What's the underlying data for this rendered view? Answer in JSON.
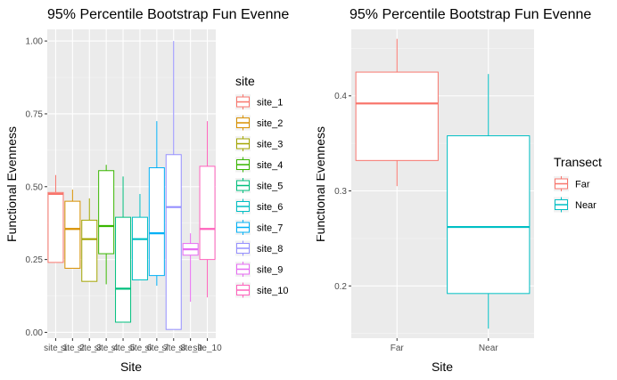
{
  "chart_data": [
    {
      "type": "box",
      "title": "95% Percentile Bootstrap Fun Evenne",
      "xlabel": "Site",
      "ylabel": "Functional Evenness",
      "ylim": [
        -0.02,
        1.04
      ],
      "yticks": [
        0.0,
        0.25,
        0.5,
        0.75,
        1.0
      ],
      "ytick_labels": [
        "0.00",
        "0.25",
        "0.50",
        "0.75",
        "1.00"
      ],
      "grid": true,
      "legend_title": "site",
      "legend_position": "right",
      "categories": [
        "site_1",
        "site_2",
        "site_3",
        "site_4",
        "site_5",
        "site_6",
        "site_7",
        "site_8",
        "site_9",
        "site_10"
      ],
      "xtick_labels": [
        "site_1",
        "site_2",
        "site_3",
        "site_4",
        "site_5",
        "site_6",
        "site_7",
        "site_8",
        "site_9",
        "site_10"
      ],
      "boxes": [
        {
          "name": "site_1",
          "color": "#F8766D",
          "min": 0.24,
          "q1": 0.24,
          "median": 0.475,
          "q3": 0.48,
          "max": 0.54
        },
        {
          "name": "site_2",
          "color": "#D89000",
          "min": 0.22,
          "q1": 0.22,
          "median": 0.355,
          "q3": 0.45,
          "max": 0.49
        },
        {
          "name": "site_3",
          "color": "#A3A500",
          "min": 0.175,
          "q1": 0.175,
          "median": 0.32,
          "q3": 0.385,
          "max": 0.46
        },
        {
          "name": "site_4",
          "color": "#39B600",
          "min": 0.165,
          "q1": 0.27,
          "median": 0.365,
          "q3": 0.555,
          "max": 0.575
        },
        {
          "name": "site_5",
          "color": "#00BF7D",
          "min": 0.035,
          "q1": 0.035,
          "median": 0.15,
          "q3": 0.395,
          "max": 0.535
        },
        {
          "name": "site_6",
          "color": "#00BFC4",
          "min": 0.18,
          "q1": 0.18,
          "median": 0.32,
          "q3": 0.395,
          "max": 0.475
        },
        {
          "name": "site_7",
          "color": "#00B0F6",
          "min": 0.16,
          "q1": 0.195,
          "median": 0.34,
          "q3": 0.565,
          "max": 0.725
        },
        {
          "name": "site_8",
          "color": "#9590FF",
          "min": 0.01,
          "q1": 0.01,
          "median": 0.43,
          "q3": 0.61,
          "max": 1.0
        },
        {
          "name": "site_9",
          "color": "#E76BF3",
          "min": 0.105,
          "q1": 0.265,
          "median": 0.285,
          "q3": 0.305,
          "max": 0.34
        },
        {
          "name": "site_10",
          "color": "#FF62BC",
          "min": 0.12,
          "q1": 0.25,
          "median": 0.355,
          "q3": 0.57,
          "max": 0.725
        }
      ]
    },
    {
      "type": "box",
      "title": "95% Percentile Bootstrap Fun Evenne",
      "xlabel": "Site",
      "ylabel": "Functional Evenness",
      "ylim": [
        0.145,
        0.47
      ],
      "yticks": [
        0.2,
        0.3,
        0.4
      ],
      "ytick_labels": [
        "0.2",
        "0.3",
        "0.4"
      ],
      "grid": true,
      "legend_title": "Transect",
      "legend_position": "right",
      "categories": [
        "Far",
        "Near"
      ],
      "xtick_labels": [
        "Far",
        "Near"
      ],
      "boxes": [
        {
          "name": "Far",
          "color": "#F8766D",
          "min": 0.305,
          "q1": 0.332,
          "median": 0.392,
          "q3": 0.425,
          "max": 0.46
        },
        {
          "name": "Near",
          "color": "#00BFC4",
          "min": 0.155,
          "q1": 0.192,
          "median": 0.262,
          "q3": 0.358,
          "max": 0.423
        }
      ]
    }
  ]
}
